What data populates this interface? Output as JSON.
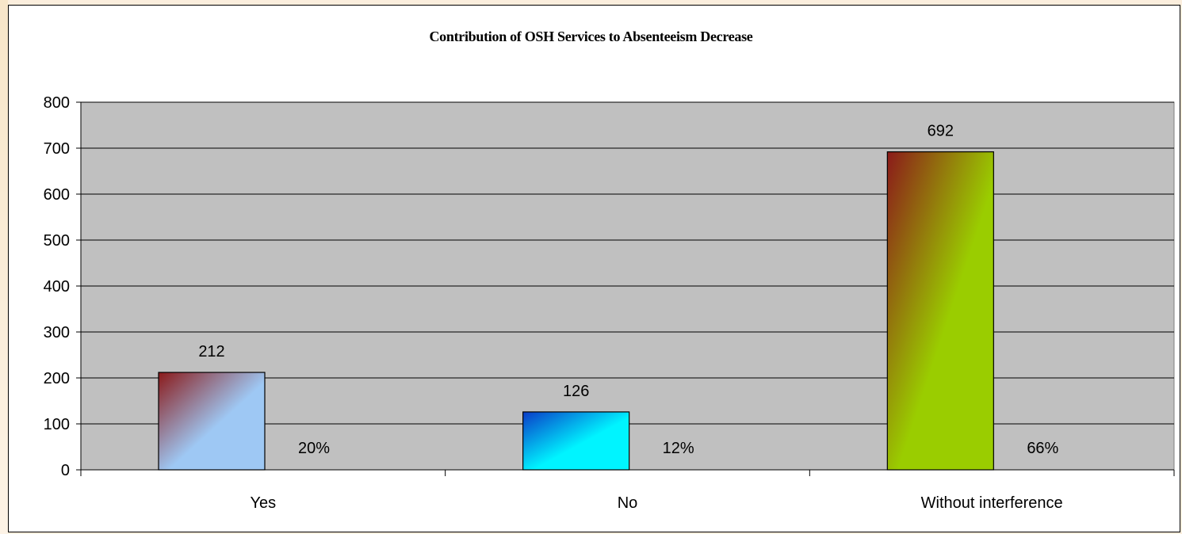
{
  "chart_data": {
    "type": "bar",
    "title": "Contribution of OSH Services to Absenteeism Decrease",
    "categories": [
      "Yes",
      "No",
      "Without interference"
    ],
    "values": [
      212,
      126,
      692
    ],
    "value_labels": [
      "212",
      "126",
      "692"
    ],
    "percent_labels": [
      "20%",
      "12%",
      "66%"
    ],
    "xlabel": "",
    "ylabel": "",
    "ylim": [
      0,
      800
    ],
    "yticks": [
      0,
      100,
      200,
      300,
      400,
      500,
      600,
      700,
      800
    ],
    "grid": true,
    "legend": "none",
    "plot_background": "#c0c0c0",
    "bar_colors": [
      {
        "dark": "#8b1a1a",
        "light": "#9ec8f4"
      },
      {
        "dark": "#0a3cc8",
        "light": "#00f4ff"
      },
      {
        "dark": "#8b1a1a",
        "light": "#9acd00"
      }
    ]
  }
}
